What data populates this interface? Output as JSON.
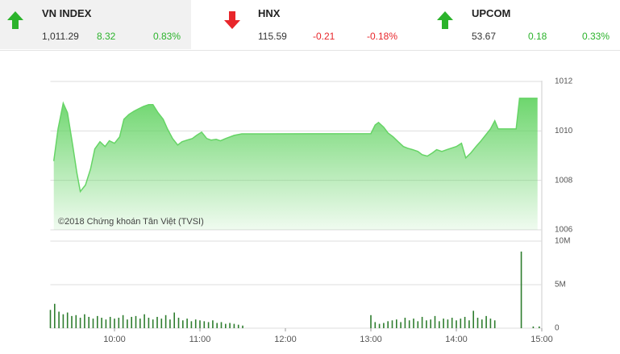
{
  "indices": [
    {
      "name": "VN INDEX",
      "value": "1,011.29",
      "change": "8.32",
      "percent": "0.83%",
      "direction": "up",
      "color": "#2bb32b"
    },
    {
      "name": "HNX",
      "value": "115.59",
      "change": "-0.21",
      "percent": "-0.18%",
      "direction": "down",
      "color": "#e8262b"
    },
    {
      "name": "UPCOM",
      "value": "53.67",
      "change": "0.18",
      "percent": "0.33%",
      "direction": "up",
      "color": "#2bb32b"
    }
  ],
  "chart_data": [
    {
      "type": "area",
      "color": "#66d466",
      "annotation": "©2018 Chứng khoán Tân Việt (TVSI)",
      "x": [
        9.29,
        9.34,
        9.4,
        9.45,
        9.51,
        9.56,
        9.6,
        9.66,
        9.72,
        9.77,
        9.83,
        9.89,
        9.94,
        10.0,
        10.06,
        10.11,
        10.17,
        10.23,
        10.28,
        10.34,
        10.4,
        10.45,
        10.51,
        10.57,
        10.62,
        10.68,
        10.74,
        10.79,
        10.85,
        10.91,
        10.96,
        11.02,
        11.08,
        11.13,
        11.19,
        11.24,
        11.3,
        11.4,
        11.49,
        11.77,
        13.0,
        13.05,
        13.09,
        13.15,
        13.2,
        13.26,
        13.32,
        13.38,
        13.43,
        13.49,
        13.55,
        13.6,
        13.66,
        13.72,
        13.77,
        13.83,
        13.89,
        13.94,
        14.0,
        14.06,
        14.11,
        14.17,
        14.23,
        14.28,
        14.34,
        14.4,
        14.45,
        14.49,
        14.7,
        14.74,
        14.95
      ],
      "values": [
        1008.78,
        1010.08,
        1011.12,
        1010.73,
        1009.43,
        1008.29,
        1007.55,
        1007.81,
        1008.46,
        1009.27,
        1009.56,
        1009.37,
        1009.6,
        1009.5,
        1009.76,
        1010.47,
        1010.67,
        1010.8,
        1010.89,
        1010.99,
        1011.06,
        1011.06,
        1010.73,
        1010.47,
        1010.08,
        1009.69,
        1009.43,
        1009.56,
        1009.63,
        1009.69,
        1009.82,
        1009.95,
        1009.69,
        1009.63,
        1009.66,
        1009.6,
        1009.69,
        1009.82,
        1009.88,
        1009.88,
        1009.89,
        1010.24,
        1010.34,
        1010.15,
        1009.92,
        1009.76,
        1009.56,
        1009.37,
        1009.3,
        1009.24,
        1009.17,
        1009.04,
        1008.98,
        1009.11,
        1009.24,
        1009.17,
        1009.24,
        1009.3,
        1009.37,
        1009.5,
        1008.91,
        1009.11,
        1009.37,
        1009.56,
        1009.82,
        1010.08,
        1010.41,
        1010.08,
        1010.08,
        1011.32,
        1011.32
      ],
      "xlim": [
        9.25,
        15
      ],
      "ylim": [
        1006,
        1012
      ],
      "yticks": [
        1006,
        1008,
        1010,
        1012
      ],
      "grid": true
    },
    {
      "type": "bar",
      "color": "#2e7d2e",
      "x": [
        9.25,
        9.3,
        9.35,
        9.4,
        9.45,
        9.5,
        9.55,
        9.6,
        9.65,
        9.7,
        9.75,
        9.8,
        9.85,
        9.9,
        9.95,
        10.0,
        10.05,
        10.1,
        10.15,
        10.2,
        10.25,
        10.3,
        10.35,
        10.4,
        10.45,
        10.5,
        10.55,
        10.6,
        10.65,
        10.7,
        10.75,
        10.8,
        10.85,
        10.9,
        10.95,
        11.0,
        11.05,
        11.1,
        11.15,
        11.2,
        11.25,
        11.3,
        11.35,
        11.4,
        11.45,
        11.5,
        13.0,
        13.05,
        13.1,
        13.15,
        13.2,
        13.25,
        13.3,
        13.35,
        13.4,
        13.45,
        13.5,
        13.55,
        13.6,
        13.65,
        13.7,
        13.75,
        13.8,
        13.85,
        13.9,
        13.95,
        14.0,
        14.05,
        14.1,
        14.15,
        14.2,
        14.25,
        14.3,
        14.35,
        14.4,
        14.45,
        14.76,
        14.9,
        14.97
      ],
      "values": [
        2.1,
        2.8,
        1.9,
        1.6,
        1.8,
        1.4,
        1.5,
        1.2,
        1.6,
        1.3,
        1.1,
        1.4,
        1.2,
        1.0,
        1.3,
        1.1,
        1.2,
        1.5,
        1.0,
        1.3,
        1.4,
        1.1,
        1.6,
        1.2,
        1.0,
        1.3,
        1.1,
        1.5,
        1.0,
        1.8,
        1.2,
        0.9,
        1.1,
        0.8,
        1.0,
        0.9,
        0.8,
        0.7,
        0.9,
        0.6,
        0.7,
        0.5,
        0.6,
        0.5,
        0.4,
        0.3,
        1.5,
        0.7,
        0.5,
        0.6,
        0.8,
        0.9,
        1.0,
        0.7,
        1.2,
        0.9,
        1.1,
        0.8,
        1.3,
        0.9,
        1.0,
        1.4,
        0.8,
        1.1,
        1.0,
        1.2,
        0.9,
        1.1,
        1.3,
        0.9,
        2.0,
        1.2,
        1.0,
        1.4,
        1.1,
        0.9,
        8.8,
        0.2,
        0.2
      ],
      "xlim": [
        9.25,
        15
      ],
      "ylim": [
        0,
        10
      ],
      "yticks": [
        0,
        {
          "value": 5,
          "label": "5M"
        },
        {
          "value": 10,
          "label": "10M"
        }
      ],
      "xticks": [
        {
          "value": 10,
          "label": "10:00"
        },
        {
          "value": 11,
          "label": "11:00"
        },
        {
          "value": 12,
          "label": "12:00"
        },
        {
          "value": 13,
          "label": "13:00"
        },
        {
          "value": 14,
          "label": "14:00"
        },
        {
          "value": 15,
          "label": "15:00"
        }
      ],
      "grid": true
    }
  ]
}
